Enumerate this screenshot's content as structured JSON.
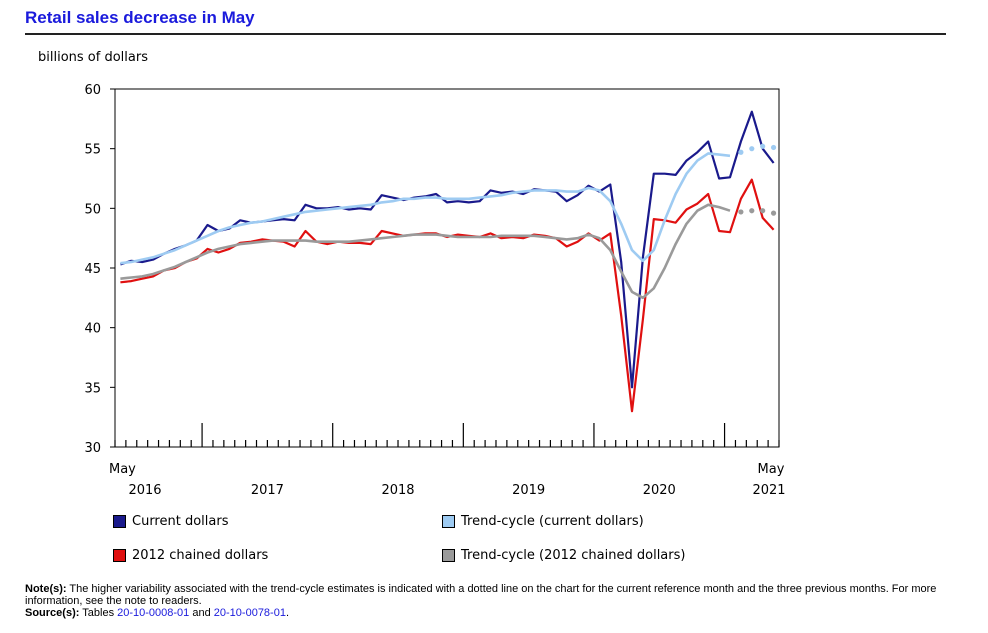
{
  "title": "Retail sales decrease in May",
  "chart_data": {
    "type": "line",
    "ylabel": "billions of dollars",
    "ylim": [
      30,
      60
    ],
    "yticks": [
      30,
      35,
      40,
      45,
      50,
      55,
      60
    ],
    "x_start_label": "May",
    "x_end_label": "May",
    "years": [
      "2016",
      "2017",
      "2018",
      "2019",
      "2020",
      "2021"
    ],
    "months": [
      "2016-05",
      "2016-06",
      "2016-07",
      "2016-08",
      "2016-09",
      "2016-10",
      "2016-11",
      "2016-12",
      "2017-01",
      "2017-02",
      "2017-03",
      "2017-04",
      "2017-05",
      "2017-06",
      "2017-07",
      "2017-08",
      "2017-09",
      "2017-10",
      "2017-11",
      "2017-12",
      "2018-01",
      "2018-02",
      "2018-03",
      "2018-04",
      "2018-05",
      "2018-06",
      "2018-07",
      "2018-08",
      "2018-09",
      "2018-10",
      "2018-11",
      "2018-12",
      "2019-01",
      "2019-02",
      "2019-03",
      "2019-04",
      "2019-05",
      "2019-06",
      "2019-07",
      "2019-08",
      "2019-09",
      "2019-10",
      "2019-11",
      "2019-12",
      "2020-01",
      "2020-02",
      "2020-03",
      "2020-04",
      "2020-05",
      "2020-06",
      "2020-07",
      "2020-08",
      "2020-09",
      "2020-10",
      "2020-11",
      "2020-12",
      "2021-01",
      "2021-02",
      "2021-03",
      "2021-04",
      "2021-05"
    ],
    "dotted_last_points": 4,
    "series": [
      {
        "name": "Current dollars",
        "color": "#1a1a8c",
        "values": [
          45.3,
          45.6,
          45.5,
          45.7,
          46.2,
          46.6,
          46.9,
          47.3,
          48.6,
          48.1,
          48.3,
          49.0,
          48.8,
          48.9,
          49.0,
          49.1,
          49.0,
          50.3,
          50.0,
          50.0,
          50.1,
          49.9,
          50.0,
          49.9,
          51.1,
          50.9,
          50.7,
          50.9,
          51.0,
          51.2,
          50.5,
          50.6,
          50.5,
          50.6,
          51.5,
          51.3,
          51.4,
          51.2,
          51.6,
          51.5,
          51.4,
          50.6,
          51.1,
          51.9,
          51.4,
          52.0,
          45.5,
          35.0,
          45.9,
          52.9,
          52.9,
          52.8,
          54.0,
          54.7,
          55.6,
          52.5,
          52.6,
          55.6,
          58.1,
          55.0,
          53.8
        ]
      },
      {
        "name": "2012 chained dollars",
        "color": "#e01010",
        "values": [
          43.8,
          43.9,
          44.1,
          44.3,
          44.8,
          45.0,
          45.5,
          45.8,
          46.6,
          46.3,
          46.6,
          47.1,
          47.2,
          47.4,
          47.3,
          47.2,
          46.8,
          48.1,
          47.2,
          47.0,
          47.2,
          47.1,
          47.1,
          47.0,
          48.1,
          47.9,
          47.7,
          47.8,
          47.9,
          47.9,
          47.6,
          47.8,
          47.7,
          47.6,
          47.9,
          47.5,
          47.6,
          47.5,
          47.8,
          47.7,
          47.5,
          46.8,
          47.2,
          47.9,
          47.3,
          47.9,
          41.0,
          33.0,
          40.7,
          49.1,
          49.0,
          48.8,
          49.9,
          50.4,
          51.2,
          48.1,
          48.0,
          50.8,
          52.4,
          49.2,
          48.2
        ]
      },
      {
        "name": "Trend-cycle (current dollars)",
        "color": "#9ecbf2",
        "values": [
          45.4,
          45.5,
          45.7,
          45.9,
          46.2,
          46.5,
          46.9,
          47.3,
          47.7,
          48.1,
          48.4,
          48.6,
          48.8,
          48.9,
          49.1,
          49.3,
          49.5,
          49.7,
          49.8,
          49.9,
          50.0,
          50.1,
          50.2,
          50.3,
          50.5,
          50.6,
          50.8,
          50.8,
          50.9,
          50.9,
          50.8,
          50.8,
          50.8,
          50.9,
          51.0,
          51.1,
          51.3,
          51.4,
          51.5,
          51.5,
          51.5,
          51.4,
          51.4,
          51.7,
          51.5,
          50.6,
          48.7,
          46.5,
          45.6,
          46.5,
          49.0,
          51.2,
          52.9,
          54.0,
          54.6,
          54.5,
          54.4,
          54.7,
          55.0,
          55.2,
          55.1
        ]
      },
      {
        "name": "Trend-cycle (2012 chained dollars)",
        "color": "#9a9a9a",
        "values": [
          44.1,
          44.2,
          44.3,
          44.5,
          44.8,
          45.1,
          45.5,
          45.9,
          46.3,
          46.6,
          46.8,
          47.0,
          47.1,
          47.2,
          47.3,
          47.3,
          47.3,
          47.3,
          47.2,
          47.2,
          47.2,
          47.2,
          47.3,
          47.4,
          47.5,
          47.6,
          47.7,
          47.8,
          47.8,
          47.8,
          47.7,
          47.6,
          47.6,
          47.6,
          47.6,
          47.7,
          47.7,
          47.7,
          47.7,
          47.6,
          47.5,
          47.4,
          47.5,
          47.8,
          47.5,
          46.5,
          44.7,
          43.0,
          42.5,
          43.3,
          45.0,
          47.0,
          48.7,
          49.8,
          50.3,
          50.1,
          49.8,
          49.7,
          49.8,
          49.8,
          49.6
        ]
      }
    ]
  },
  "legend": {
    "current": "Current dollars",
    "trend_current": "Trend-cycle (current dollars)",
    "chained": "2012 chained dollars",
    "trend_chained": "Trend-cycle (2012 chained dollars)"
  },
  "notes": {
    "note_label": "Note(s):",
    "note_text": "The higher variability associated with the trend-cycle estimates is indicated with a dotted line on the chart for the current reference month and the three previous months. For more information, see the note to readers.",
    "source_label": "Source(s):",
    "source_prefix": "Tables",
    "source_table1": "20-10-0008-01",
    "source_and": "and",
    "source_table2": "20-10-0078-01",
    "source_end": "."
  }
}
